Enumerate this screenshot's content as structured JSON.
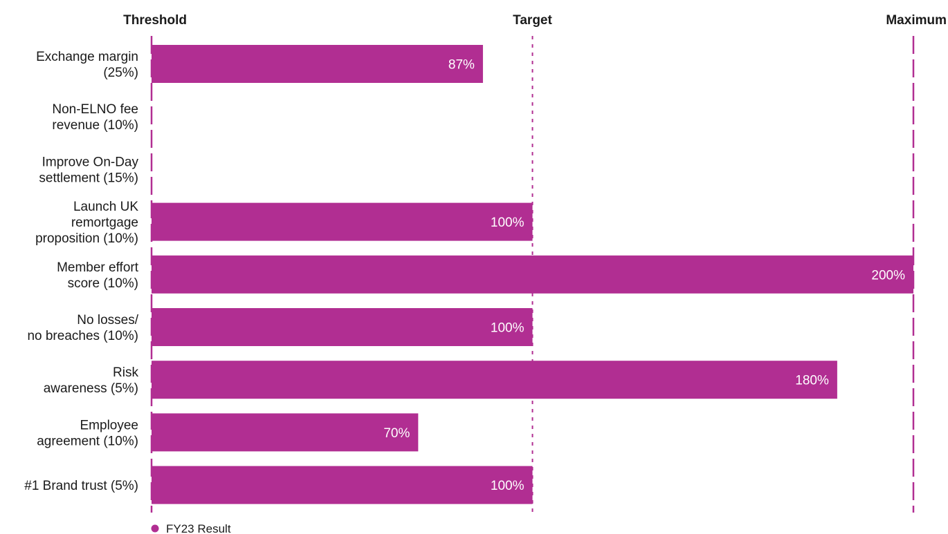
{
  "chart_data": {
    "type": "bar",
    "orientation": "horizontal",
    "categories": [
      [
        "Exchange margin",
        "(25%)"
      ],
      [
        "Non-ELNO fee",
        "revenue (10%)"
      ],
      [
        "Improve On-Day",
        "settlement (15%)"
      ],
      [
        "Launch UK",
        "remortgage",
        "proposition (10%)"
      ],
      [
        "Member effort",
        "score (10%)"
      ],
      [
        "No losses/",
        "no breaches (10%)"
      ],
      [
        "Risk",
        "awareness (5%)"
      ],
      [
        "Employee",
        "agreement (10%)"
      ],
      [
        "#1 Brand trust (5%)"
      ]
    ],
    "series": [
      {
        "name": "FY23 Result",
        "color": "#b12e92",
        "values": [
          87,
          0,
          0,
          100,
          200,
          100,
          180,
          70,
          100
        ],
        "data_labels": [
          "87%",
          "",
          "",
          "100%",
          "200%",
          "100%",
          "180%",
          "70%",
          "100%"
        ]
      }
    ],
    "xlim": [
      0,
      200
    ],
    "reference_lines": [
      {
        "label": "Threshold",
        "value": 0
      },
      {
        "label": "Target",
        "value": 100
      },
      {
        "label": "Maximum",
        "value": 200
      }
    ],
    "reference_line_color": "#b12e92",
    "legend": "bottom-left",
    "grid": false
  }
}
